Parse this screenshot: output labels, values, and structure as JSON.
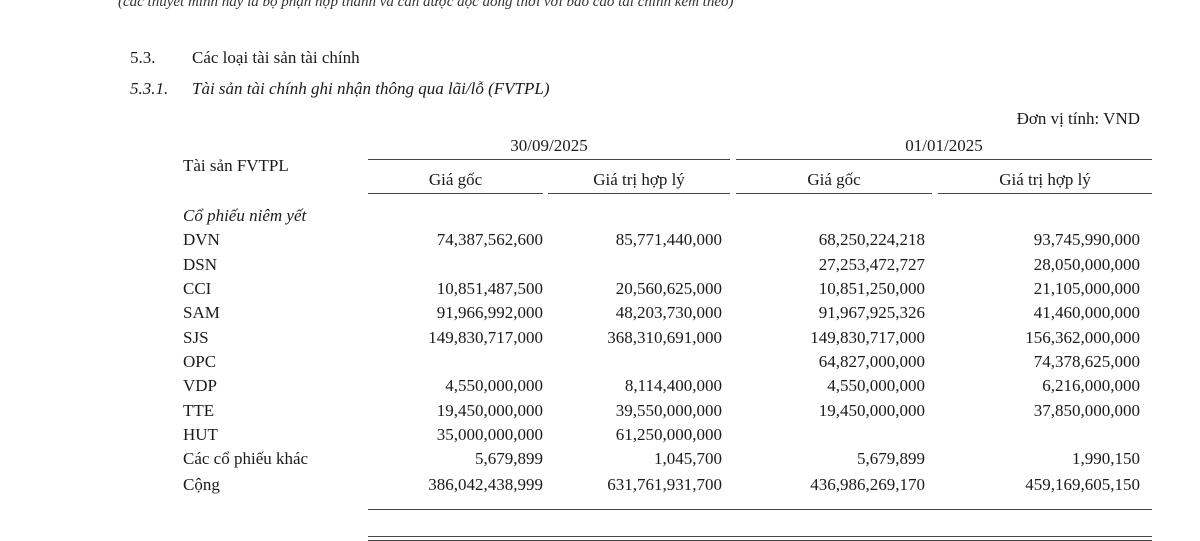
{
  "header_note": "(các thuyết minh này là bộ phận hợp thành và cần được đọc đồng thời với báo cáo tài chính kèm theo)",
  "section": {
    "number": "5.3.",
    "title": "Các loại tài sản tài chính"
  },
  "subsection": {
    "number": "5.3.1.",
    "title": "Tài sản tài chính ghi nhận thông qua lãi/lỗ (FVTPL)"
  },
  "unit": "Đơn vị tính: VND",
  "table": {
    "asset_header": "Tài sản FVTPL",
    "periods": [
      "30/09/2025",
      "01/01/2025"
    ],
    "columns": [
      "Giá gốc",
      "Giá trị hợp lý",
      "Giá gốc",
      "Giá trị hợp lý"
    ],
    "group": "Cổ phiếu niêm yết",
    "rows": [
      {
        "name": "DVN",
        "values": [
          "74,387,562,600",
          "85,771,440,000",
          "68,250,224,218",
          "93,745,990,000"
        ]
      },
      {
        "name": "DSN",
        "values": [
          "",
          "",
          "27,253,472,727",
          "28,050,000,000"
        ]
      },
      {
        "name": "CCI",
        "values": [
          "10,851,487,500",
          "20,560,625,000",
          "10,851,250,000",
          "21,105,000,000"
        ]
      },
      {
        "name": "SAM",
        "values": [
          "91,966,992,000",
          "48,203,730,000",
          "91,967,925,326",
          "41,460,000,000"
        ]
      },
      {
        "name": "SJS",
        "values": [
          "149,830,717,000",
          "368,310,691,000",
          "149,830,717,000",
          "156,362,000,000"
        ]
      },
      {
        "name": "OPC",
        "values": [
          "",
          "",
          "64,827,000,000",
          "74,378,625,000"
        ]
      },
      {
        "name": "VDP",
        "values": [
          "4,550,000,000",
          "8,114,400,000",
          "4,550,000,000",
          "6,216,000,000"
        ]
      },
      {
        "name": "TTE",
        "values": [
          "19,450,000,000",
          "39,550,000,000",
          "19,450,000,000",
          "37,850,000,000"
        ]
      },
      {
        "name": "HUT",
        "values": [
          "35,000,000,000",
          "61,250,000,000",
          "",
          ""
        ]
      },
      {
        "name": "Các cổ phiếu khác",
        "values": [
          "5,679,899",
          "1,045,700",
          "5,679,899",
          "1,990,150"
        ]
      }
    ],
    "total": {
      "name": "Cộng",
      "values": [
        "386,042,438,999",
        "631,761,931,700",
        "436,986,269,170",
        "459,169,605,150"
      ]
    }
  }
}
